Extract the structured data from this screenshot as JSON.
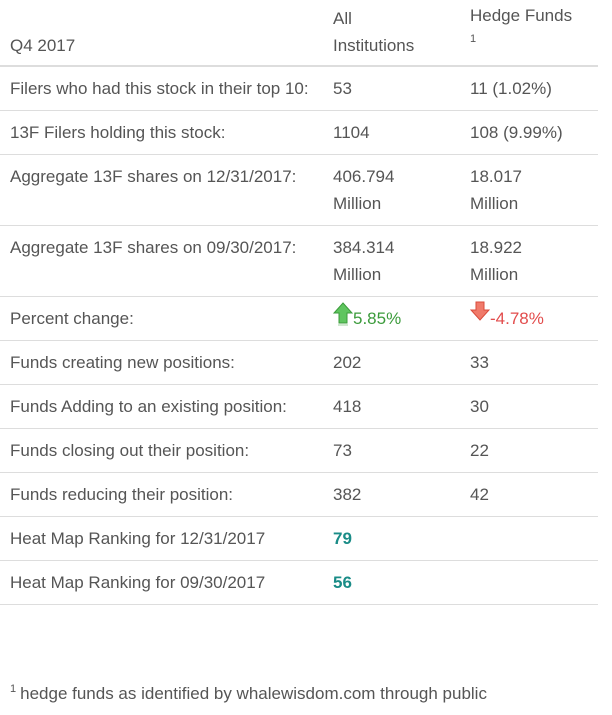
{
  "header": {
    "period": "Q4 2017",
    "col_all_line1": "All",
    "col_all_line2": "Institutions",
    "col_hedge": "Hedge Funds",
    "col_hedge_sup": "1"
  },
  "rows": [
    {
      "label": "Filers who had this stock in their top 10:",
      "all": "53",
      "hedge": "11 (1.02%)"
    },
    {
      "label": "13F Filers holding this stock:",
      "all": "1104",
      "hedge": "108 (9.99%)"
    },
    {
      "label": "Aggregate 13F shares on 12/31/2017:",
      "all": "406.794 Million",
      "hedge": "18.017 Million"
    },
    {
      "label": "Aggregate 13F shares on 09/30/2017:",
      "all": "384.314 Million",
      "hedge": "18.922 Million"
    },
    {
      "label": "Percent change:",
      "all": "5.85%",
      "hedge": "-4.78%",
      "all_icon": "green-up-arrow-icon",
      "hedge_icon": "red-down-arrow-icon"
    },
    {
      "label": "Funds creating new positions:",
      "all": "202",
      "hedge": "33"
    },
    {
      "label": "Funds Adding to an existing position:",
      "all": "418",
      "hedge": "30"
    },
    {
      "label": "Funds closing out their position:",
      "all": "73",
      "hedge": "22"
    },
    {
      "label": "Funds reducing their position:",
      "all": "382",
      "hedge": "42"
    },
    {
      "label": "Heat Map Ranking for 12/31/2017",
      "all": "79",
      "hedge": ""
    },
    {
      "label": "Heat Map Ranking for 09/30/2017",
      "all": "56",
      "hedge": ""
    }
  ],
  "footnote": {
    "marker": "1",
    "text": "hedge funds as identified by whalewisdom.com through public"
  },
  "colors": {
    "ranking": "#1a8c87",
    "positive": "#3b9b3b",
    "negative": "#e24c4c",
    "border": "#dddddd",
    "text": "#555555"
  }
}
